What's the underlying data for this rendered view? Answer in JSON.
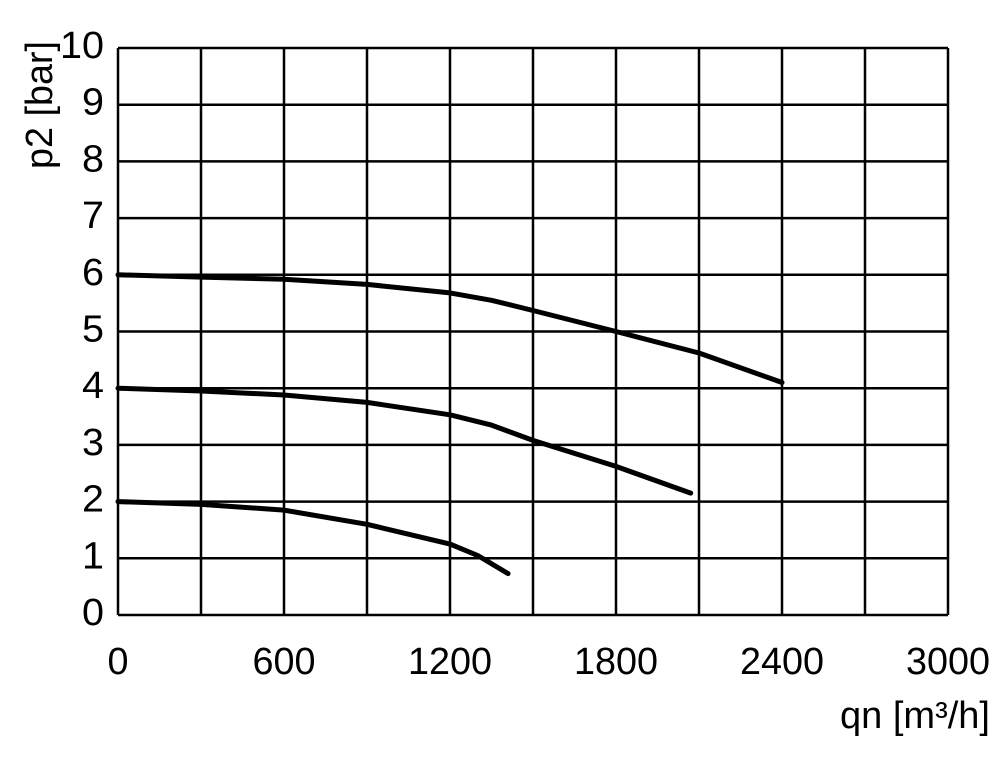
{
  "chart_data": {
    "type": "line",
    "x_label": "qn [m³/h]",
    "y_label": "p2 [bar]",
    "xlim": [
      0,
      3000
    ],
    "xticks": [
      0,
      600,
      1200,
      1800,
      2400,
      3000
    ],
    "xgrid_minor": [
      300,
      900,
      1500,
      2100,
      2700
    ],
    "ylim": [
      0,
      10
    ],
    "yticks": [
      0,
      1,
      2,
      3,
      4,
      5,
      6,
      7,
      8,
      9,
      10
    ],
    "grid": true,
    "color": "#000000",
    "series": [
      {
        "x": [
          0,
          300,
          600,
          900,
          1200,
          1350,
          1500,
          1800,
          2100,
          2400
        ],
        "values": [
          6,
          5.96,
          5.92,
          5.83,
          5.68,
          5.55,
          5.37,
          5.0,
          4.62,
          4.1
        ]
      },
      {
        "x": [
          0,
          300,
          600,
          900,
          1200,
          1350,
          1500,
          1800,
          2070
        ],
        "values": [
          4,
          3.95,
          3.88,
          3.75,
          3.53,
          3.35,
          3.08,
          2.62,
          2.15
        ]
      },
      {
        "x": [
          0,
          300,
          600,
          900,
          1200,
          1300,
          1410
        ],
        "values": [
          2,
          1.95,
          1.85,
          1.6,
          1.25,
          1.05,
          0.73
        ]
      }
    ]
  }
}
